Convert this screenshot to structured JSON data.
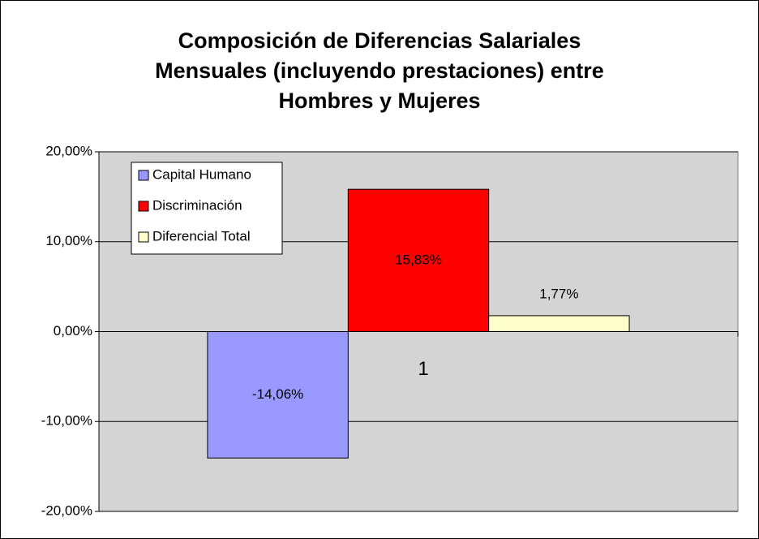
{
  "chart_data": {
    "type": "bar",
    "title": [
      "Composición de Diferencias Salariales",
      "Mensuales (incluyendo prestaciones) entre",
      "Hombres y Mujeres"
    ],
    "categories": [
      "1"
    ],
    "series": [
      {
        "name": "Capital Humano",
        "color": "#9999ff",
        "values": [
          -14.06
        ],
        "value_labels": [
          "-14,06%"
        ]
      },
      {
        "name": "Discriminación",
        "color": "#ff0000",
        "values": [
          15.83
        ],
        "value_labels": [
          "15,83%"
        ]
      },
      {
        "name": "Diferencial Total",
        "color": "#ffffcc",
        "values": [
          1.77
        ],
        "value_labels": [
          "1,77%"
        ]
      }
    ],
    "ylim": [
      -20,
      20
    ],
    "yticks": [
      {
        "value": -20,
        "label": "-20,00%"
      },
      {
        "value": -10,
        "label": "-10,00%"
      },
      {
        "value": 0,
        "label": "0,00%"
      },
      {
        "value": 10,
        "label": "10,00%"
      },
      {
        "value": 20,
        "label": "20,00%"
      }
    ],
    "grid": true,
    "legend": "upper left"
  }
}
